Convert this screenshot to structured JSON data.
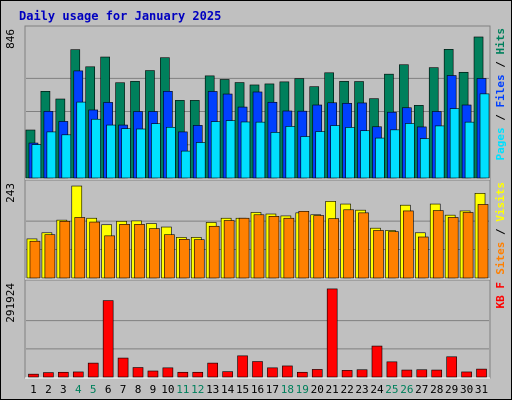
{
  "chart_data": {
    "title": "Daily usage for January 2025",
    "type": "bar",
    "colors": {
      "hits": "#00805c",
      "files": "#0040ff",
      "pages": "#00e0ff",
      "visits": "#ffff00",
      "sites": "#ff8000",
      "kbytes": "#ff0000",
      "title": "#0000c0",
      "day_normal": "#000000",
      "day_weekend": "#00805c",
      "background": "#c0c0c0"
    },
    "days": [
      "1",
      "2",
      "3",
      "4",
      "5",
      "6",
      "7",
      "8",
      "9",
      "10",
      "11",
      "12",
      "13",
      "14",
      "15",
      "16",
      "17",
      "18",
      "19",
      "20",
      "21",
      "22",
      "23",
      "24",
      "25",
      "26",
      "27",
      "28",
      "29",
      "30",
      "31"
    ],
    "weekend_days": [
      "4",
      "5",
      "11",
      "12",
      "18",
      "19",
      "25",
      "26"
    ],
    "panels": [
      {
        "id": "usage",
        "ytick": "846",
        "ymax": 846,
        "labels": [
          {
            "text": "Pages",
            "color": "#00e0ff"
          },
          {
            "text": " / ",
            "color": "#000000"
          },
          {
            "text": "Files",
            "color": "#0040ff"
          },
          {
            "text": " / ",
            "color": "#000000"
          },
          {
            "text": "Hits",
            "color": "#00805c"
          }
        ],
        "series": [
          {
            "key": "hits",
            "color": "#00805c",
            "values": [
              280,
              506,
              461,
              749,
              649,
              706,
              556,
              564,
              627,
              702,
              453,
              453,
              596,
              575,
              557,
              543,
              549,
              561,
              580,
              533,
              614,
              564,
              563,
              463,
              606,
              661,
              424,
              644,
              751,
              617,
              823
            ]
          },
          {
            "key": "files",
            "color": "#0040ff",
            "values": [
              204,
              389,
              330,
              625,
              397,
              441,
              309,
              388,
              388,
              506,
              269,
              307,
              505,
              490,
              414,
              502,
              442,
              391,
              390,
              426,
              439,
              436,
              438,
              299,
              384,
              410,
              298,
              388,
              598,
              426,
              581
            ]
          },
          {
            "key": "pages",
            "color": "#00e0ff",
            "values": [
              195,
              269,
              252,
              443,
              343,
              309,
              288,
              286,
              317,
              296,
              157,
              207,
              329,
              335,
              327,
              326,
              266,
              301,
              242,
              271,
              306,
              295,
              276,
              233,
              281,
              318,
              230,
              304,
              405,
              326,
              491
            ]
          }
        ]
      },
      {
        "id": "visits",
        "ytick": "243",
        "ymax": 243,
        "labels": [
          {
            "text": "Sites",
            "color": "#ff8000"
          },
          {
            "text": " / ",
            "color": "#000000"
          },
          {
            "text": "Visits",
            "color": "#ffff00"
          }
        ],
        "series": [
          {
            "key": "visits",
            "color": "#ffff00",
            "values": [
              102,
              118,
              151,
              240,
              156,
              139,
              148,
              149,
              142,
              133,
              106,
              106,
              145,
              156,
              156,
              171,
              167,
              162,
              170,
              165,
              200,
              193,
              177,
              130,
              124,
              190,
              118,
              193,
              164,
              175,
              221
            ]
          },
          {
            "key": "sites",
            "color": "#ff8000",
            "values": [
              96,
              113,
              148,
              158,
              146,
              110,
              140,
              140,
              129,
              113,
              101,
              100,
              135,
              150,
              156,
              165,
              161,
              156,
              174,
              163,
              155,
              178,
              170,
              124,
              121,
              175,
              107,
              176,
              158,
              171,
              192
            ]
          }
        ]
      },
      {
        "id": "kbytes",
        "ytick": "291924",
        "ymax": 291924,
        "labels": [
          {
            "text": "KB F",
            "color": "#ff0000"
          }
        ],
        "series": [
          {
            "key": "kbytes",
            "color": "#ff0000",
            "values": [
              9000,
              14000,
              15000,
              16000,
              44000,
              242000,
              60000,
              30000,
              19000,
              29000,
              15000,
              15000,
              44000,
              17000,
              67000,
              49000,
              29000,
              35000,
              15000,
              24000,
              279000,
              21000,
              23000,
              98000,
              48000,
              22000,
              23000,
              22000,
              64000,
              16000,
              25000
            ]
          }
        ]
      }
    ]
  }
}
